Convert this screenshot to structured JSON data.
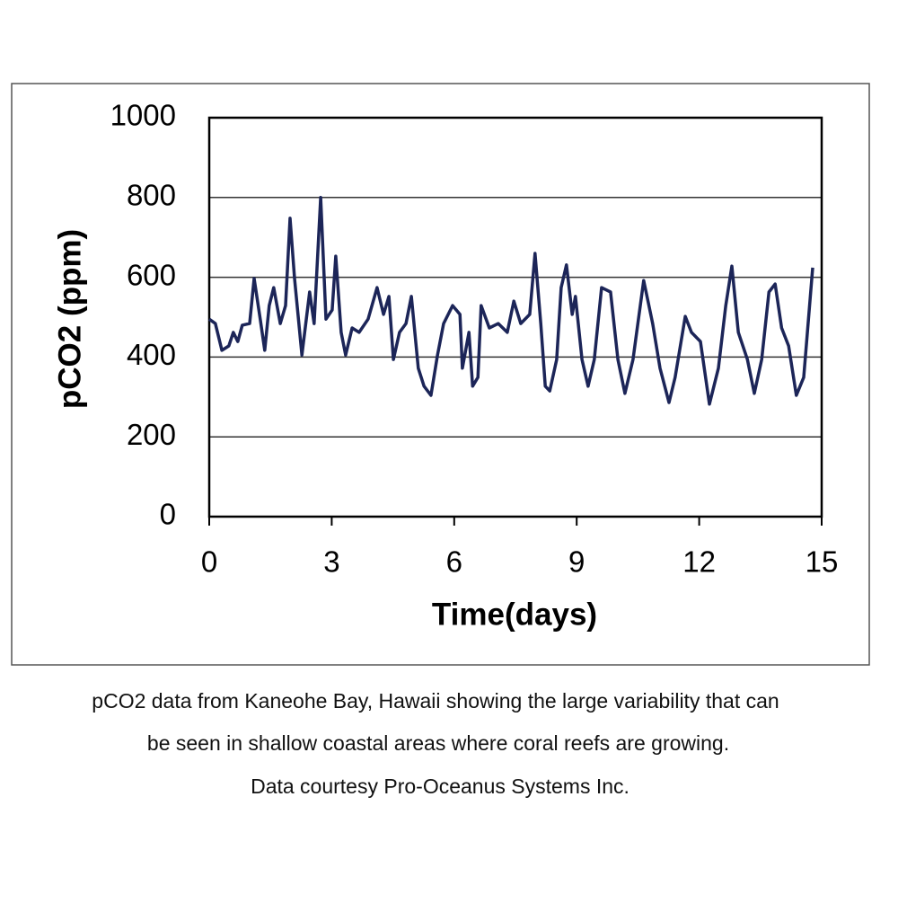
{
  "chart_data": {
    "type": "line",
    "x_label": "Time(days)",
    "y_label": "pCO2 (ppm)",
    "xlim": [
      0,
      15
    ],
    "xticks": [
      0,
      3,
      6,
      9,
      12,
      15
    ],
    "ylim": [
      0,
      1000
    ],
    "yticks": [
      0,
      200,
      400,
      600,
      800,
      1000
    ],
    "grid": true,
    "x": [
      0,
      0.15,
      0.31,
      0.48,
      0.59,
      0.7,
      0.81,
      0.99,
      1.1,
      1.25,
      1.36,
      1.47,
      1.58,
      1.74,
      1.87,
      1.98,
      2.09,
      2.27,
      2.46,
      2.57,
      2.73,
      2.86,
      3.01,
      3.1,
      3.23,
      3.34,
      3.5,
      3.67,
      3.89,
      4.11,
      4.27,
      4.4,
      4.51,
      4.66,
      4.82,
      4.95,
      5.12,
      5.26,
      5.43,
      5.59,
      5.74,
      5.96,
      6.14,
      6.2,
      6.36,
      6.45,
      6.58,
      6.66,
      6.86,
      7.08,
      7.3,
      7.46,
      7.63,
      7.85,
      7.98,
      8.12,
      8.23,
      8.34,
      8.51,
      8.62,
      8.75,
      8.89,
      8.97,
      9.13,
      9.28,
      9.43,
      9.61,
      9.83,
      10.01,
      10.18,
      10.38,
      10.64,
      10.86,
      11.04,
      11.26,
      11.41,
      11.66,
      11.81,
      12.03,
      12.25,
      12.47,
      12.65,
      12.8,
      12.96,
      13.18,
      13.35,
      13.53,
      13.71,
      13.86,
      14.02,
      14.19,
      14.38,
      14.56,
      14.78
    ],
    "series": [
      {
        "color": "#1c2558",
        "values": [
          495,
          484,
          417,
          428,
          462,
          439,
          480,
          484,
          597,
          495,
          417,
          529,
          574,
          484,
          529,
          748,
          597,
          405,
          563,
          484,
          800,
          495,
          518,
          653,
          462,
          405,
          473,
          462,
          495,
          574,
          507,
          552,
          394,
          462,
          484,
          552,
          372,
          327,
          304,
          405,
          484,
          529,
          507,
          372,
          462,
          327,
          349,
          529,
          473,
          484,
          462,
          540,
          484,
          507,
          660,
          484,
          327,
          315,
          394,
          574,
          631,
          507,
          552,
          394,
          327,
          394,
          574,
          563,
          394,
          309,
          394,
          592,
          484,
          372,
          286,
          349,
          502,
          462,
          439,
          282,
          372,
          529,
          628,
          462,
          394,
          309,
          394,
          563,
          583,
          473,
          428,
          304,
          349,
          624
        ]
      }
    ]
  },
  "caption": [
    "pCO2 data from Kaneohe Bay, Hawaii showing the large variability that can",
    "be seen in shallow coastal areas where coral reefs are growing.",
    "Data courtesy Pro-Oceanus Systems Inc."
  ]
}
